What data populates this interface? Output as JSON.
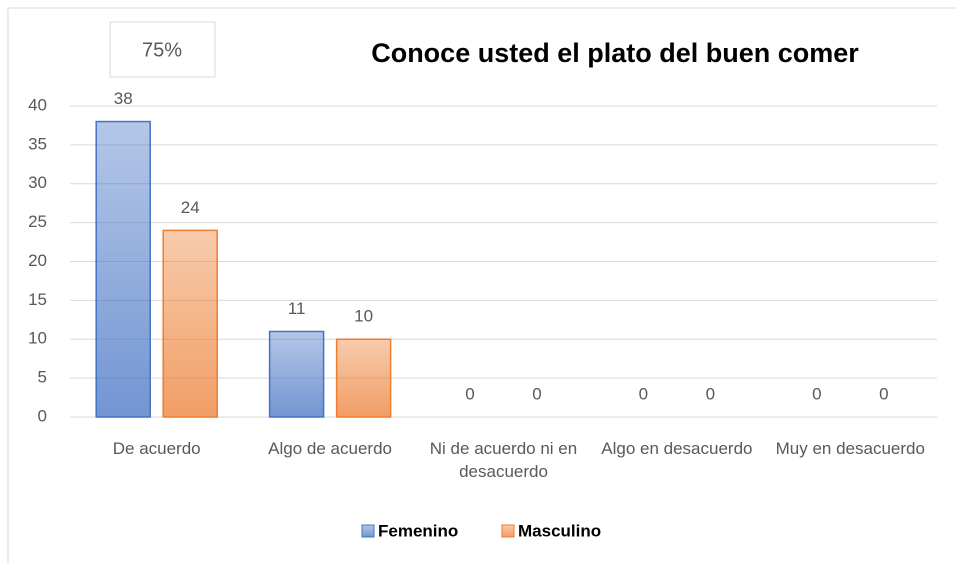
{
  "chart_data": {
    "type": "bar",
    "title": "Conoce usted el plato del buen comer",
    "annotation": "75%",
    "categories": [
      "De acuerdo",
      "Algo de acuerdo",
      "Ni de acuerdo  ni en desacuerdo",
      "Algo en desacuerdo",
      "Muy en desacuerdo"
    ],
    "series": [
      {
        "name": "Femenino",
        "color": "#4472c4",
        "values": [
          38,
          11,
          0,
          0,
          0
        ]
      },
      {
        "name": "Masculino",
        "color": "#ed7d31",
        "values": [
          24,
          10,
          0,
          0,
          0
        ]
      }
    ],
    "ylim": [
      0,
      40
    ],
    "yticks": [
      0,
      5,
      10,
      15,
      20,
      25,
      30,
      35,
      40
    ],
    "grid": true,
    "legend": "bottom"
  }
}
